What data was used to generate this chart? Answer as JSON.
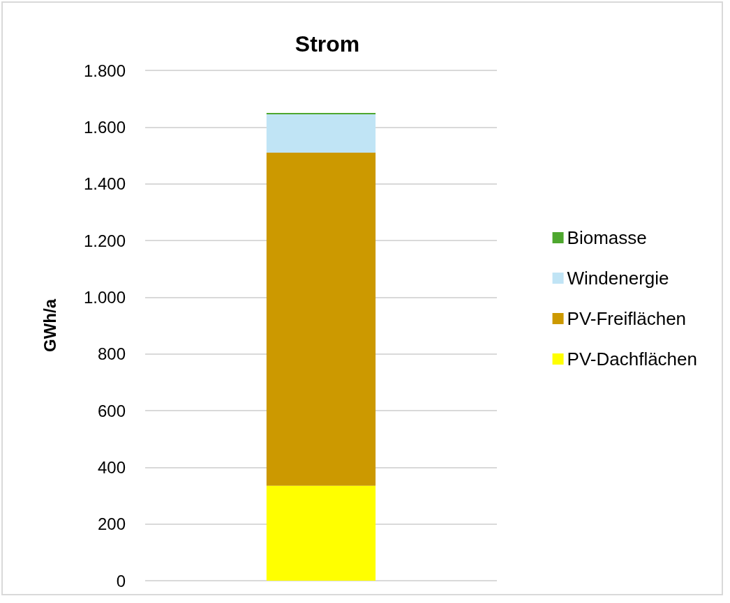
{
  "chart_data": {
    "type": "bar",
    "title": "Strom",
    "ylabel": "GWh/a",
    "categories": [
      null
    ],
    "stacked": true,
    "series": [
      {
        "name": "PV-Dachflächen",
        "color": "#ffff00",
        "values": [
          335
        ]
      },
      {
        "name": "PV-Freiflächen",
        "color": "#cc9900",
        "values": [
          1175
        ]
      },
      {
        "name": "Windenergie",
        "color": "#c0e4f5",
        "values": [
          135
        ]
      },
      {
        "name": "Biomasse",
        "color": "#4ea72e",
        "values": [
          5
        ]
      }
    ],
    "ylim": [
      0,
      1800
    ],
    "yticks": [
      0,
      200,
      400,
      600,
      800,
      {
        "value": 1000,
        "label": "1.000"
      },
      {
        "value": 1200,
        "label": "1.200"
      },
      {
        "value": 1400,
        "label": "1.400"
      },
      {
        "value": 1600,
        "label": "1.600"
      },
      {
        "value": 1800,
        "label": "1.800"
      }
    ],
    "grid": "y",
    "legend": "right"
  }
}
